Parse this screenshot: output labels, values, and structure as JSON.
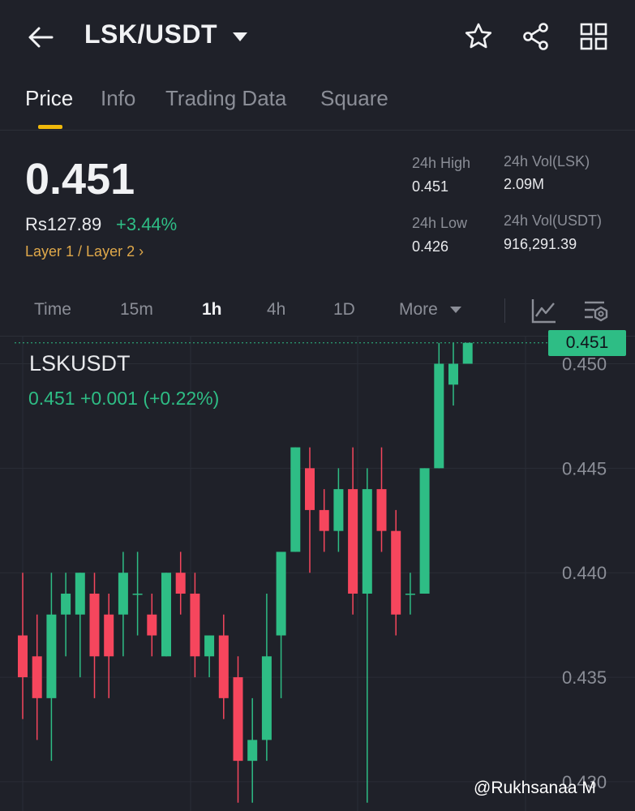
{
  "header": {
    "pair": "LSK/USDT"
  },
  "tabs": [
    "Price",
    "Info",
    "Trading Data",
    "Square"
  ],
  "ticker": {
    "last_price": "0.451",
    "fiat_price": "Rs127.89",
    "change_pct": "+3.44%",
    "category": "Layer 1 / Layer 2 ›",
    "high_label": "24h High",
    "high_value": "0.451",
    "low_label": "24h Low",
    "low_value": "0.426",
    "vol_base_label": "24h Vol(LSK)",
    "vol_base_value": "2.09M",
    "vol_quote_label": "24h Vol(USDT)",
    "vol_quote_value": "916,291.39"
  },
  "intervals": [
    "Time",
    "15m",
    "1h",
    "4h",
    "1D",
    "More"
  ],
  "chart_header": {
    "symbol": "LSKUSDT",
    "quote": "0.451  +0.001 (+0.22%)",
    "last_badge": "0.451"
  },
  "watermark": "@Rukhsanaa M",
  "colors": {
    "up": "#2ebd85",
    "down": "#f6465d",
    "accent": "#f0b90b",
    "background": "#1f2129"
  },
  "chart_data": {
    "type": "candlestick",
    "symbol": "LSKUSDT",
    "interval": "1h",
    "y_ticks": [
      "0.450",
      "0.445",
      "0.440",
      "0.435",
      "0.430"
    ],
    "ylim": [
      0.4286,
      0.4513
    ],
    "last_price": 0.451,
    "candles": [
      {
        "o": 0.437,
        "h": 0.44,
        "l": 0.433,
        "c": 0.435
      },
      {
        "o": 0.436,
        "h": 0.438,
        "l": 0.432,
        "c": 0.434
      },
      {
        "o": 0.434,
        "h": 0.44,
        "l": 0.431,
        "c": 0.438
      },
      {
        "o": 0.438,
        "h": 0.44,
        "l": 0.436,
        "c": 0.439
      },
      {
        "o": 0.438,
        "h": 0.44,
        "l": 0.435,
        "c": 0.44
      },
      {
        "o": 0.439,
        "h": 0.44,
        "l": 0.434,
        "c": 0.436
      },
      {
        "o": 0.438,
        "h": 0.439,
        "l": 0.434,
        "c": 0.436
      },
      {
        "o": 0.438,
        "h": 0.441,
        "l": 0.436,
        "c": 0.44
      },
      {
        "o": 0.439,
        "h": 0.441,
        "l": 0.437,
        "c": 0.439
      },
      {
        "o": 0.438,
        "h": 0.439,
        "l": 0.436,
        "c": 0.437
      },
      {
        "o": 0.436,
        "h": 0.44,
        "l": 0.436,
        "c": 0.44
      },
      {
        "o": 0.44,
        "h": 0.441,
        "l": 0.438,
        "c": 0.439
      },
      {
        "o": 0.439,
        "h": 0.44,
        "l": 0.435,
        "c": 0.436
      },
      {
        "o": 0.436,
        "h": 0.437,
        "l": 0.435,
        "c": 0.437
      },
      {
        "o": 0.437,
        "h": 0.438,
        "l": 0.433,
        "c": 0.434
      },
      {
        "o": 0.435,
        "h": 0.436,
        "l": 0.429,
        "c": 0.431
      },
      {
        "o": 0.431,
        "h": 0.434,
        "l": 0.429,
        "c": 0.432
      },
      {
        "o": 0.432,
        "h": 0.439,
        "l": 0.431,
        "c": 0.436
      },
      {
        "o": 0.437,
        "h": 0.441,
        "l": 0.434,
        "c": 0.441
      },
      {
        "o": 0.441,
        "h": 0.446,
        "l": 0.441,
        "c": 0.446
      },
      {
        "o": 0.445,
        "h": 0.446,
        "l": 0.44,
        "c": 0.443
      },
      {
        "o": 0.443,
        "h": 0.444,
        "l": 0.441,
        "c": 0.442
      },
      {
        "o": 0.442,
        "h": 0.445,
        "l": 0.441,
        "c": 0.444
      },
      {
        "o": 0.444,
        "h": 0.446,
        "l": 0.438,
        "c": 0.439
      },
      {
        "o": 0.439,
        "h": 0.445,
        "l": 0.429,
        "c": 0.444
      },
      {
        "o": 0.444,
        "h": 0.446,
        "l": 0.441,
        "c": 0.442
      },
      {
        "o": 0.442,
        "h": 0.443,
        "l": 0.437,
        "c": 0.438
      },
      {
        "o": 0.439,
        "h": 0.44,
        "l": 0.438,
        "c": 0.439
      },
      {
        "o": 0.439,
        "h": 0.445,
        "l": 0.439,
        "c": 0.445
      },
      {
        "o": 0.445,
        "h": 0.451,
        "l": 0.445,
        "c": 0.45
      },
      {
        "o": 0.449,
        "h": 0.451,
        "l": 0.448,
        "c": 0.45
      },
      {
        "o": 0.45,
        "h": 0.451,
        "l": 0.45,
        "c": 0.451
      }
    ]
  }
}
